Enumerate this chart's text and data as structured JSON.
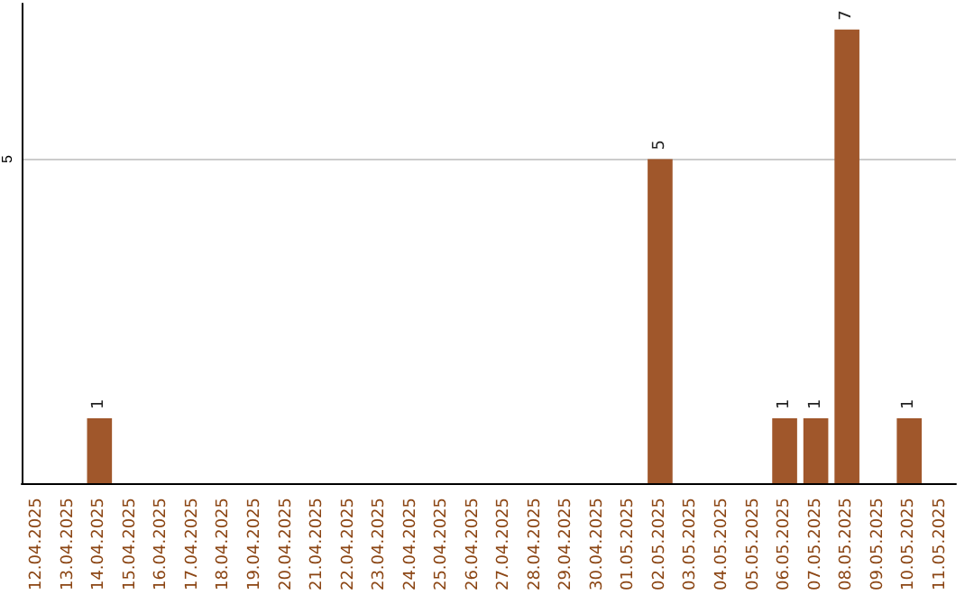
{
  "chart_data": {
    "type": "bar",
    "categories": [
      "12.04.2025",
      "13.04.2025",
      "14.04.2025",
      "15.04.2025",
      "16.04.2025",
      "17.04.2025",
      "18.04.2025",
      "19.04.2025",
      "20.04.2025",
      "21.04.2025",
      "22.04.2025",
      "23.04.2025",
      "24.04.2025",
      "25.04.2025",
      "26.04.2025",
      "27.04.2025",
      "28.04.2025",
      "29.04.2025",
      "30.04.2025",
      "01.05.2025",
      "02.05.2025",
      "03.05.2025",
      "04.05.2025",
      "05.05.2025",
      "06.05.2025",
      "07.05.2025",
      "08.05.2025",
      "09.05.2025",
      "10.05.2025",
      "11.05.2025"
    ],
    "values": [
      0,
      0,
      1,
      0,
      0,
      0,
      0,
      0,
      0,
      0,
      0,
      0,
      0,
      0,
      0,
      0,
      0,
      0,
      0,
      0,
      5,
      0,
      0,
      0,
      1,
      1,
      7,
      0,
      1,
      0
    ],
    "color": "#a0572b",
    "value_labels": [
      null,
      null,
      "1",
      null,
      null,
      null,
      null,
      null,
      null,
      null,
      null,
      null,
      null,
      null,
      null,
      null,
      null,
      null,
      null,
      null,
      "5",
      null,
      null,
      null,
      "1",
      "1",
      "7",
      null,
      "1",
      null
    ],
    "ylim": [
      0,
      7.4
    ],
    "yticks": [
      5
    ],
    "grid": "y"
  }
}
